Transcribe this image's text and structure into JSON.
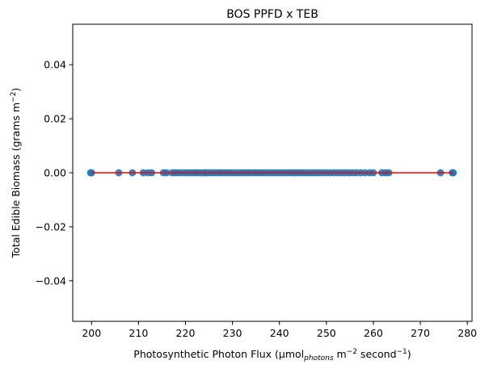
{
  "chart_data": {
    "type": "scatter",
    "title": "BOS PPFD x TEB",
    "xlabel": {
      "prefix": "Photosynthetic Photon Flux (μmol",
      "sub": "photons",
      "mid1": " m",
      "sup1": "−2",
      "mid2": " second",
      "sup2": "−1",
      "suffix": ")"
    },
    "ylabel": {
      "prefix": "Total Edible Biomass (grams m",
      "sup": "−2",
      "suffix": ")"
    },
    "xlim": [
      196,
      281
    ],
    "ylim": [
      -0.055,
      0.055
    ],
    "xticks": [
      200,
      210,
      220,
      230,
      240,
      250,
      260,
      270,
      280
    ],
    "yticks": [
      -0.04,
      -0.02,
      0.0,
      0.02,
      0.04
    ],
    "ytick_labels": [
      "−0.04",
      "−0.02",
      "0.00",
      "0.02",
      "0.04"
    ],
    "point_color": "#1f77b4",
    "fit_line_color": "#ff0000",
    "fit_line": {
      "x": [
        200,
        277
      ],
      "y": [
        0,
        0
      ]
    },
    "points": {
      "x": [
        199.8,
        200.0,
        205.8,
        208.7,
        211.0,
        212.0,
        212.8,
        215.3,
        216.0,
        217.2,
        217.8,
        218.5,
        219.2,
        220.0,
        220.6,
        221.3,
        222.0,
        222.6,
        223.3,
        224.0,
        224.5,
        225.2,
        225.9,
        226.5,
        227.2,
        227.8,
        228.5,
        229.2,
        229.8,
        230.5,
        231.2,
        231.9,
        232.5,
        233.2,
        233.8,
        234.5,
        235.1,
        235.8,
        236.4,
        237.1,
        237.8,
        238.5,
        239.1,
        239.8,
        240.5,
        241.2,
        241.8,
        242.5,
        243.1,
        243.7,
        244.4,
        245.0,
        245.7,
        246.4,
        247.0,
        247.7,
        248.4,
        249.2,
        250.0,
        250.8,
        251.6,
        252.4,
        253.2,
        254.0,
        254.8,
        255.6,
        256.4,
        257.3,
        258.2,
        259.2,
        260.0,
        261.8,
        262.6,
        263.3,
        274.3,
        276.8,
        277.0
      ],
      "y": [
        0,
        0,
        0,
        0,
        0,
        0,
        0,
        0,
        0,
        0,
        0,
        0,
        0,
        0,
        0,
        0,
        0,
        0,
        0,
        0,
        0,
        0,
        0,
        0,
        0,
        0,
        0,
        0,
        0,
        0,
        0,
        0,
        0,
        0,
        0,
        0,
        0,
        0,
        0,
        0,
        0,
        0,
        0,
        0,
        0,
        0,
        0,
        0,
        0,
        0,
        0,
        0,
        0,
        0,
        0,
        0,
        0,
        0,
        0,
        0,
        0,
        0,
        0,
        0,
        0,
        0,
        0,
        0,
        0,
        0,
        0,
        0,
        0,
        0,
        0,
        0,
        0
      ]
    }
  }
}
